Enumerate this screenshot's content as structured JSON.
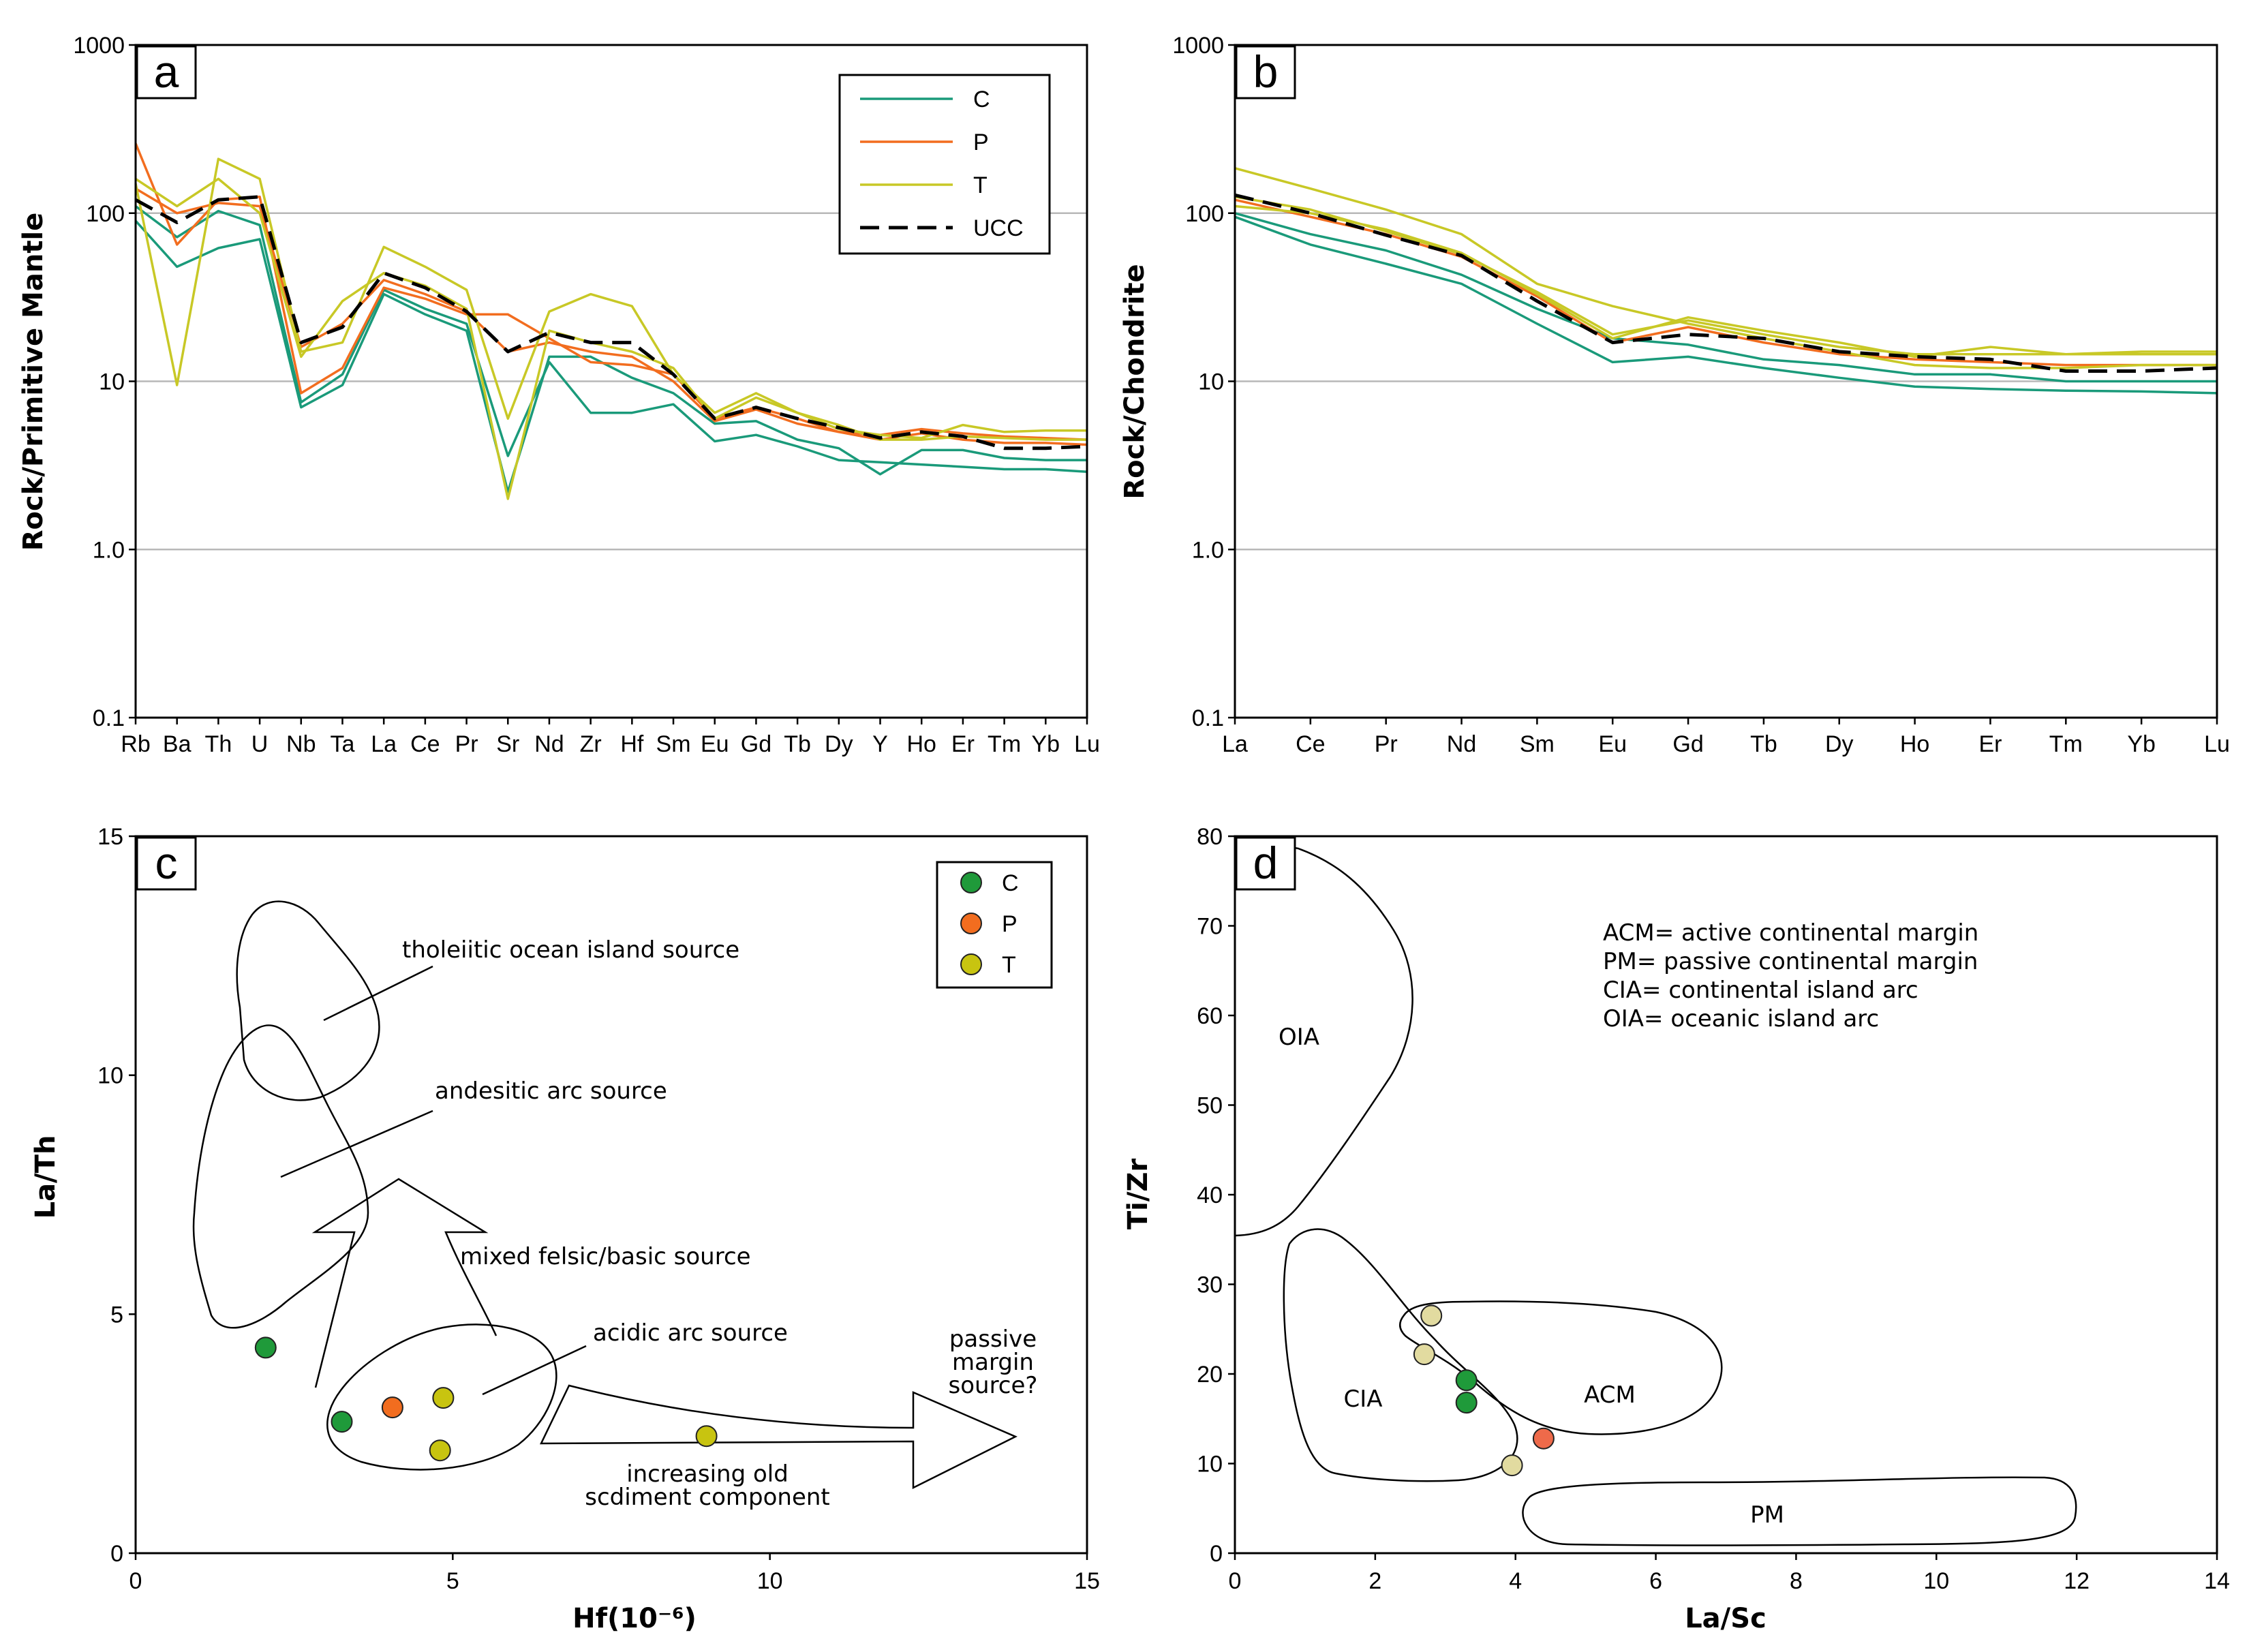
{
  "colors": {
    "C": "#1a9a7a",
    "P": "#f26d1f",
    "T": "#c8c826",
    "UCC": "#000000",
    "C_dot": "#1f9a3a",
    "P_dot": "#f26d1f",
    "T_dot": "#c8c410",
    "d_C_dot": "#1f9a3a",
    "d_P_dot": "#ee6a4a",
    "d_T_dot": "#e2dba0"
  },
  "chart_data": [
    {
      "type": "line",
      "panel": "a",
      "yscale": "log",
      "ylabel": "Rock/Primitive Mantle",
      "ylim": [
        0.1,
        1000
      ],
      "yticks": [
        "0.1",
        "1.0",
        "10",
        "100",
        "1000"
      ],
      "categories": [
        "Rb",
        "Ba",
        "Th",
        "U",
        "Nb",
        "Ta",
        "La",
        "Ce",
        "Pr",
        "Sr",
        "Nd",
        "Zr",
        "Hf",
        "Sm",
        "Eu",
        "Gd",
        "Tb",
        "Dy",
        "Y",
        "Ho",
        "Er",
        "Tm",
        "Yb",
        "Lu"
      ],
      "legend": [
        "C",
        "P",
        "T",
        "UCC"
      ],
      "series": [
        {
          "name": "C",
          "values": [
            90,
            48,
            62,
            70,
            7,
            9.5,
            33,
            25,
            20,
            2.2,
            14,
            14,
            10.5,
            8.5,
            5.6,
            5.8,
            4.5,
            4,
            2.8,
            3.9,
            3.9,
            3.5,
            3.4,
            3.4
          ]
        },
        {
          "name": "C",
          "values": [
            110,
            72,
            103,
            85,
            7.5,
            11,
            35,
            27,
            22,
            3.6,
            13,
            6.5,
            6.5,
            7.3,
            4.4,
            4.8,
            4.1,
            3.4,
            3.3,
            3.2,
            3.1,
            3.0,
            3.0,
            2.9
          ]
        },
        {
          "name": "P",
          "values": [
            260,
            65,
            120,
            125,
            8.5,
            12,
            36,
            31,
            25,
            25,
            18,
            13,
            12.5,
            11,
            6,
            7,
            6,
            5,
            4.8,
            5.2,
            4.9,
            4.7,
            4.6,
            4.5
          ]
        },
        {
          "name": "P",
          "values": [
            140,
            100,
            115,
            110,
            16,
            22,
            40,
            33,
            26,
            15,
            17,
            15,
            14,
            10,
            5.8,
            6.8,
            5.6,
            5,
            4.5,
            4.9,
            4.5,
            4.3,
            4.3,
            4.2
          ]
        },
        {
          "name": "T",
          "values": [
            150,
            9.5,
            210,
            160,
            15,
            17,
            63,
            48,
            35,
            6,
            26,
            33,
            28,
            11,
            6.5,
            8.5,
            6.5,
            5.2,
            4.8,
            4.6,
            5.5,
            5,
            5.1,
            5.1
          ]
        },
        {
          "name": "T",
          "values": [
            160,
            110,
            160,
            100,
            14,
            30,
            44,
            37,
            27,
            2.0,
            20,
            17,
            15,
            12,
            6,
            8,
            6.5,
            5.5,
            4.5,
            4.5,
            4.7,
            4.6,
            4.5,
            4.5
          ]
        },
        {
          "name": "UCC",
          "values": [
            120,
            88,
            120,
            125,
            17,
            21,
            44,
            36,
            26,
            15,
            19.5,
            17,
            17,
            11,
            6,
            7,
            6,
            5.3,
            4.6,
            5,
            4.7,
            4.0,
            4.0,
            4.1
          ]
        }
      ]
    },
    {
      "type": "line",
      "panel": "b",
      "yscale": "log",
      "ylabel": "Rock/Chondrite",
      "ylim": [
        0.1,
        1000
      ],
      "yticks": [
        "0.1",
        "1.0",
        "10",
        "100",
        "1000"
      ],
      "categories": [
        "La",
        "Ce",
        "Pr",
        "Nd",
        "Sm",
        "Eu",
        "Gd",
        "Tb",
        "Dy",
        "Ho",
        "Er",
        "Tm",
        "Yb",
        "Lu"
      ],
      "series": [
        {
          "name": "C",
          "values": [
            95,
            65,
            50,
            38,
            22,
            13,
            14,
            12,
            10.5,
            9.3,
            9,
            8.8,
            8.7,
            8.5
          ]
        },
        {
          "name": "C",
          "values": [
            100,
            75,
            60,
            43,
            27,
            18,
            16.5,
            13.5,
            12.5,
            11,
            11,
            10,
            10,
            10
          ]
        },
        {
          "name": "P",
          "values": [
            120,
            95,
            75,
            55,
            32,
            17,
            21,
            17,
            14.5,
            13.5,
            13,
            12.5,
            12.5,
            12.5
          ]
        },
        {
          "name": "T",
          "values": [
            185,
            140,
            105,
            75,
            38,
            28,
            22,
            18,
            15,
            12.5,
            12,
            12,
            12.5,
            12.5
          ]
        },
        {
          "name": "T",
          "values": [
            110,
            100,
            80,
            58,
            33,
            18,
            24,
            20,
            17,
            14,
            16,
            14.5,
            14.5,
            14.5
          ]
        },
        {
          "name": "T",
          "values": [
            125,
            105,
            78,
            57,
            34,
            19,
            23,
            19,
            16,
            14.5,
            14.5,
            14.5,
            15,
            15
          ]
        },
        {
          "name": "UCC",
          "values": [
            128,
            100,
            74,
            56,
            30,
            17,
            19,
            18,
            15,
            14,
            13.5,
            11.5,
            11.5,
            12
          ]
        }
      ]
    },
    {
      "type": "scatter",
      "panel": "c",
      "xlabel": "Hf(10⁻⁶)",
      "ylabel": "La/Th",
      "xlim": [
        0,
        15
      ],
      "ylim": [
        0,
        15
      ],
      "xticks": [
        "0",
        "5",
        "10",
        "15"
      ],
      "yticks": [
        "0",
        "5",
        "10",
        "15"
      ],
      "legend": [
        "C",
        "P",
        "T"
      ],
      "series": [
        {
          "name": "C",
          "points": [
            [
              2.05,
              4.3
            ],
            [
              3.25,
              2.75
            ]
          ]
        },
        {
          "name": "P",
          "points": [
            [
              4.05,
              3.05
            ]
          ]
        },
        {
          "name": "T",
          "points": [
            [
              4.85,
              3.25
            ],
            [
              4.8,
              2.15
            ],
            [
              9.0,
              2.45
            ]
          ]
        }
      ],
      "annotations": {
        "tholeiitic": "tholeiitic ocean island source",
        "andesitic": "andesitic arc source",
        "mixed": "mixed felsic/basic source",
        "acidic": "acidic arc source",
        "passive1": "passive",
        "passive2": "margin",
        "passive3": "source?",
        "increasing1": "increasing old",
        "increasing2": "scdiment component"
      }
    },
    {
      "type": "scatter",
      "panel": "d",
      "xlabel": "La/Sc",
      "ylabel": "Ti/Zr",
      "xlim": [
        0,
        14
      ],
      "ylim": [
        0,
        80
      ],
      "xticks": [
        "0",
        "2",
        "4",
        "6",
        "8",
        "10",
        "12",
        "14"
      ],
      "yticks": [
        "0",
        "10",
        "20",
        "30",
        "40",
        "50",
        "60",
        "70",
        "80"
      ],
      "series": [
        {
          "name": "C",
          "points": [
            [
              3.3,
              19.3
            ],
            [
              3.3,
              16.8
            ]
          ]
        },
        {
          "name": "P",
          "points": [
            [
              4.4,
              12.8
            ]
          ]
        },
        {
          "name": "T",
          "points": [
            [
              2.8,
              26.5
            ],
            [
              2.7,
              22.2
            ],
            [
              3.95,
              9.8
            ]
          ]
        }
      ],
      "fields": [
        "OIA",
        "CIA",
        "ACM",
        "PM"
      ],
      "notes": [
        "ACM= active continental margin",
        "PM= passive continental margin",
        "CIA= continental island arc",
        "OIA= oceanic island arc"
      ]
    }
  ]
}
